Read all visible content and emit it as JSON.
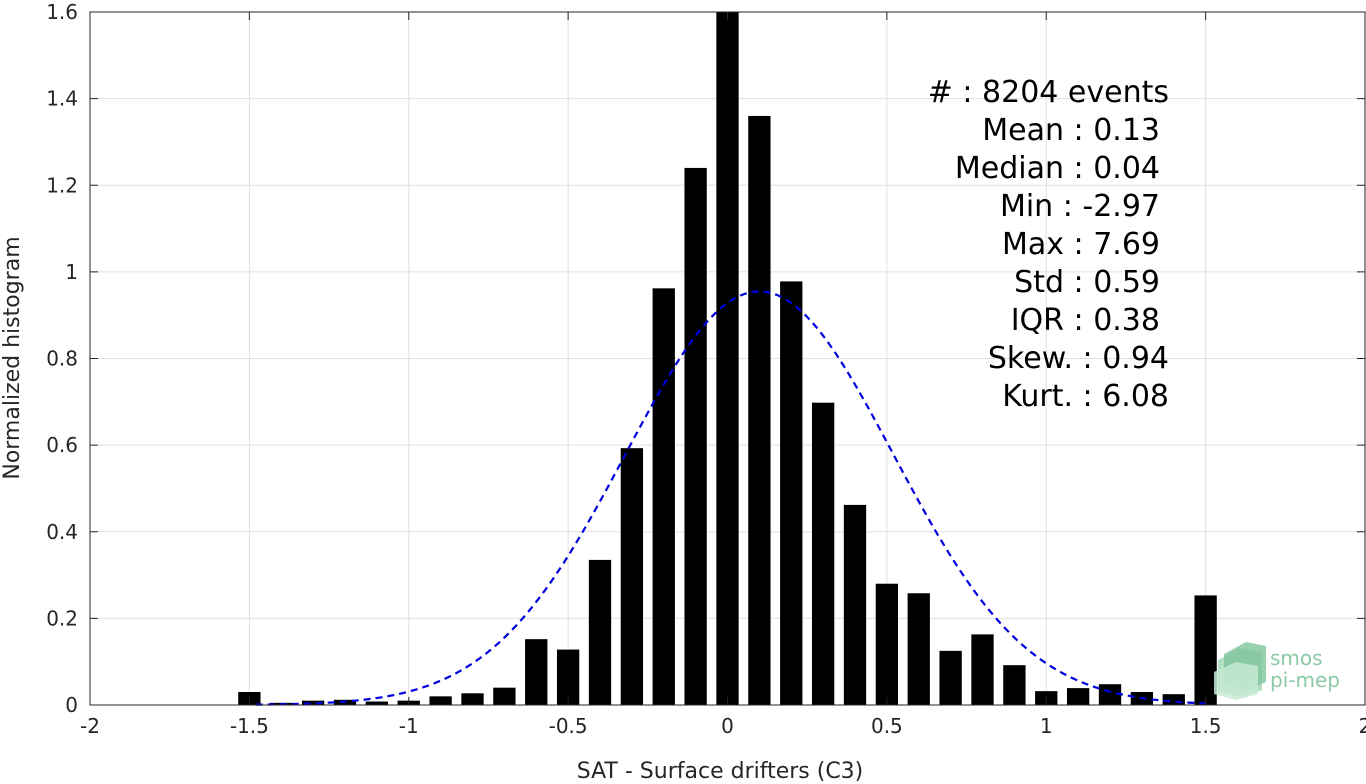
{
  "chart_data": {
    "type": "bar",
    "xlabel": "SAT - Surface drifters (C3)",
    "ylabel": "Normalized histogram",
    "xlim": [
      -2,
      2
    ],
    "ylim": [
      0,
      1.6
    ],
    "xticks": [
      -2,
      -1.5,
      -1,
      -0.5,
      0,
      0.5,
      1,
      1.5,
      2
    ],
    "xtick_labels": [
      "-2",
      "-1.5",
      "-1",
      "-0.5",
      "0",
      "0.5",
      "1",
      "1.5",
      "2"
    ],
    "yticks": [
      0,
      0.2,
      0.4,
      0.6,
      0.8,
      1,
      1.2,
      1.4,
      1.6
    ],
    "ytick_labels": [
      "0",
      "0.2",
      "0.4",
      "0.6",
      "0.8",
      "1",
      "1.2",
      "1.4",
      "1.6"
    ],
    "grid": true,
    "bar_width": 0.07,
    "bar_color": "#000000",
    "x": [
      -1.5,
      -1.4,
      -1.3,
      -1.2,
      -1.1,
      -1.0,
      -0.9,
      -0.8,
      -0.7,
      -0.6,
      -0.5,
      -0.4,
      -0.3,
      -0.2,
      -0.1,
      0.0,
      0.1,
      0.2,
      0.3,
      0.4,
      0.5,
      0.6,
      0.7,
      0.8,
      0.9,
      1.0,
      1.1,
      1.2,
      1.3,
      1.4,
      1.5
    ],
    "values": [
      0.03,
      0.005,
      0.01,
      0.012,
      0.008,
      0.01,
      0.02,
      0.027,
      0.04,
      0.152,
      0.128,
      0.335,
      0.593,
      0.962,
      1.24,
      1.6,
      1.36,
      0.978,
      0.698,
      0.462,
      0.28,
      0.258,
      0.125,
      0.163,
      0.092,
      0.032,
      0.039,
      0.048,
      0.03,
      0.025,
      0.253
    ],
    "fit_curve": {
      "type": "normal",
      "mean": 0.1,
      "std": 0.42,
      "peak": 0.955,
      "x_range": [
        -1.48,
        1.5
      ],
      "color": "#0000dd",
      "style": "dashed"
    },
    "stats_lines": [
      "#  : 8204 events",
      "Mean : 0.13",
      "Median : 0.04",
      "Min : -2.97",
      "Max : 7.69",
      "Std : 0.59",
      "IQR : 0.38",
      "Skew. : 0.94",
      "Kurt. : 6.08"
    ]
  },
  "logo": {
    "line1": "smos",
    "line2": "pi-mep",
    "color": "#8cc9a6"
  }
}
